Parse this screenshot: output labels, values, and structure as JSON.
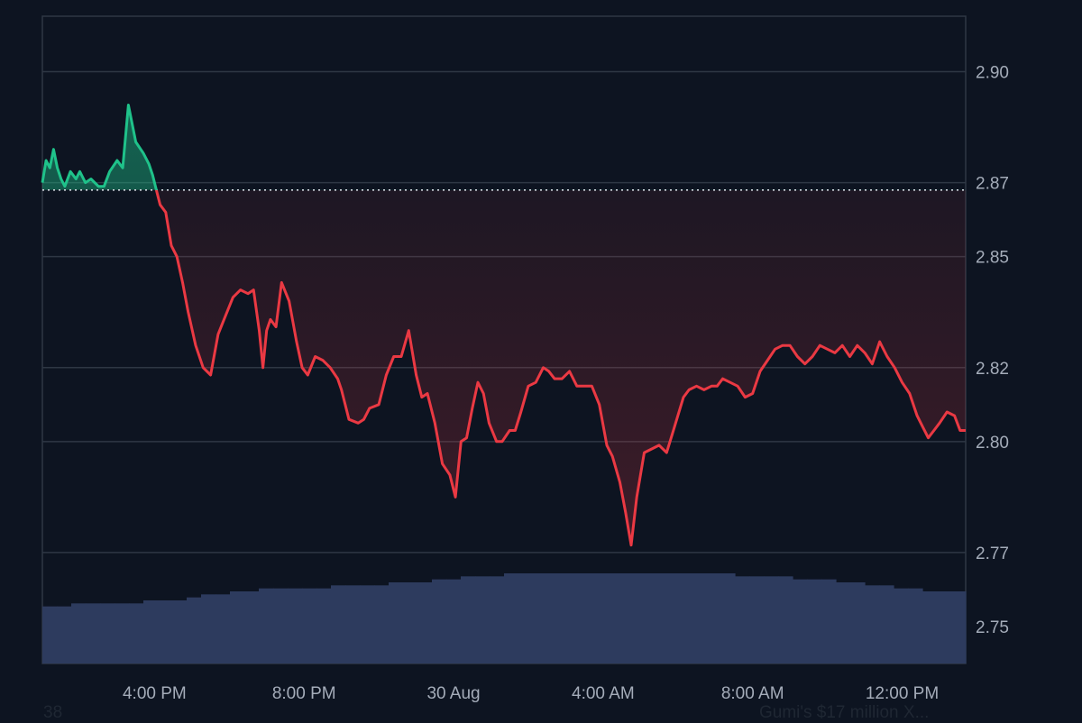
{
  "chart_data": {
    "type": "line",
    "y_ticks": [
      2.9,
      2.87,
      2.85,
      2.82,
      2.8,
      2.77,
      2.75
    ],
    "y_tick_labels": [
      "2.90",
      "2.87",
      "2.85",
      "2.82",
      "2.80",
      "2.77",
      "2.75"
    ],
    "ylim": [
      2.74,
      2.915
    ],
    "x_tick_labels": [
      "4:00 PM",
      "8:00 PM",
      "30 Aug",
      "4:00 AM",
      "8:00 AM",
      "12:00 PM"
    ],
    "x_tick_hours": [
      16,
      20,
      24,
      28,
      32,
      36
    ],
    "x_range_hours": [
      13,
      37.7
    ],
    "baseline": 2.868,
    "series": [
      {
        "x_hours": [
          13.0,
          13.1,
          13.2,
          13.3,
          13.4,
          13.5,
          13.6,
          13.75,
          13.9,
          14.0,
          14.15,
          14.3,
          14.5,
          14.65,
          14.8,
          15.0,
          15.15,
          15.3,
          15.5,
          15.7,
          15.85,
          15.95,
          16.05,
          16.15,
          16.3,
          16.45,
          16.6,
          16.75,
          16.9,
          17.1,
          17.3,
          17.5,
          17.7,
          17.9,
          18.1,
          18.3,
          18.5,
          18.65,
          18.8,
          18.9,
          19.0,
          19.1,
          19.25,
          19.4,
          19.6,
          19.8,
          19.95,
          20.1,
          20.3,
          20.5,
          20.7,
          20.9,
          21.0,
          21.2,
          21.45,
          21.6,
          21.75,
          22.0,
          22.2,
          22.4,
          22.6,
          22.8,
          23.0,
          23.15,
          23.3,
          23.5,
          23.7,
          23.9,
          24.05,
          24.2,
          24.35,
          24.5,
          24.65,
          24.8,
          24.95,
          25.15,
          25.3,
          25.5,
          25.65,
          25.8,
          26.0,
          26.2,
          26.4,
          26.55,
          26.7,
          26.9,
          27.1,
          27.3,
          27.5,
          27.7,
          27.9,
          28.1,
          28.25,
          28.45,
          28.6,
          28.75,
          28.9,
          29.1,
          29.3,
          29.5,
          29.7,
          29.85,
          30.0,
          30.15,
          30.3,
          30.5,
          30.7,
          30.9,
          31.05,
          31.2,
          31.4,
          31.6,
          31.8,
          32.0,
          32.2,
          32.4,
          32.6,
          32.8,
          33.0,
          33.2,
          33.4,
          33.6,
          33.8,
          34.0,
          34.2,
          34.4,
          34.6,
          34.8,
          35.0,
          35.2,
          35.4,
          35.6,
          35.8,
          36.0,
          36.2,
          36.4,
          36.55,
          36.7,
          36.85,
          37.0,
          37.2,
          37.4,
          37.55,
          37.7
        ],
        "values": [
          2.87,
          2.876,
          2.874,
          2.879,
          2.874,
          2.871,
          2.869,
          2.873,
          2.871,
          2.873,
          2.87,
          2.871,
          2.869,
          2.869,
          2.873,
          2.876,
          2.874,
          2.891,
          2.881,
          2.878,
          2.875,
          2.872,
          2.868,
          2.864,
          2.862,
          2.853,
          2.85,
          2.843,
          2.835,
          2.826,
          2.82,
          2.818,
          2.829,
          2.834,
          2.839,
          2.841,
          2.84,
          2.841,
          2.83,
          2.82,
          2.83,
          2.833,
          2.831,
          2.843,
          2.838,
          2.827,
          2.82,
          2.818,
          2.823,
          2.822,
          2.82,
          2.817,
          2.814,
          2.806,
          2.805,
          2.806,
          2.809,
          2.81,
          2.818,
          2.823,
          2.823,
          2.83,
          2.818,
          2.812,
          2.813,
          2.805,
          2.794,
          2.791,
          2.785,
          2.8,
          2.801,
          2.809,
          2.816,
          2.813,
          2.805,
          2.8,
          2.8,
          2.803,
          2.803,
          2.808,
          2.815,
          2.816,
          2.82,
          2.819,
          2.817,
          2.817,
          2.819,
          2.815,
          2.815,
          2.815,
          2.81,
          2.799,
          2.796,
          2.789,
          2.781,
          2.772,
          2.785,
          2.797,
          2.798,
          2.799,
          2.797,
          2.802,
          2.807,
          2.812,
          2.814,
          2.815,
          2.814,
          2.815,
          2.815,
          2.817,
          2.816,
          2.815,
          2.812,
          2.813,
          2.819,
          2.822,
          2.825,
          2.826,
          2.826,
          2.823,
          2.821,
          2.823,
          2.826,
          2.825,
          2.824,
          2.826,
          2.823,
          2.826,
          2.824,
          2.821,
          2.827,
          2.823,
          2.82,
          2.816,
          2.813,
          2.807,
          2.804,
          2.801,
          2.803,
          2.805,
          2.808,
          2.807,
          2.803,
          2.803
        ]
      }
    ],
    "volume_bars": [
      0.19,
      0.19,
      0.2,
      0.2,
      0.2,
      0.2,
      0.2,
      0.21,
      0.21,
      0.21,
      0.22,
      0.23,
      0.23,
      0.24,
      0.24,
      0.25,
      0.25,
      0.25,
      0.25,
      0.25,
      0.26,
      0.26,
      0.26,
      0.26,
      0.27,
      0.27,
      0.27,
      0.28,
      0.28,
      0.29,
      0.29,
      0.29,
      0.3,
      0.3,
      0.3,
      0.3,
      0.3,
      0.3,
      0.3,
      0.3,
      0.3,
      0.3,
      0.3,
      0.3,
      0.3,
      0.3,
      0.3,
      0.3,
      0.29,
      0.29,
      0.29,
      0.29,
      0.28,
      0.28,
      0.28,
      0.27,
      0.27,
      0.26,
      0.26,
      0.25,
      0.25,
      0.24,
      0.24,
      0.24
    ],
    "colors": {
      "up": "#1fc28a",
      "down": "#ea3943",
      "grid": "#2e3744",
      "volume": "#2d3b5e",
      "baseline": "#d6dbe2"
    }
  },
  "footer": {
    "left_text": "38",
    "right_text": "Gumi's $17 million X..."
  }
}
